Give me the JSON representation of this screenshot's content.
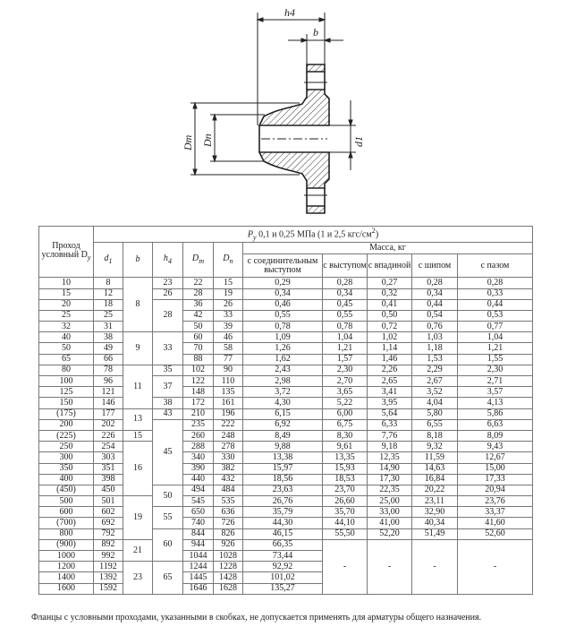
{
  "drawing": {
    "labels": {
      "h4": "h4",
      "b": "b",
      "Dm": "Dm",
      "Dn": "Dn",
      "d1": "d1"
    }
  },
  "table": {
    "header": {
      "dy": "Проход условный D",
      "dy_sub": "y",
      "pressure": "P",
      "pressure_sub": "y",
      "pressure_text": " 0,1 и 0,25 МПа (1 и 2,5 кгс/см",
      "pressure_sup": "2",
      "pressure_end": ")",
      "d1": "d",
      "d1_sub": "1",
      "b": "b",
      "h4": "h",
      "h4_sub": "4",
      "dm": "D",
      "dm_sub": "m",
      "dn": "D",
      "dn_sub": "n",
      "mass": "Масса, кг",
      "mass_cols": [
        "с соединительным выступом",
        "с выступом",
        "с впадиной",
        "с шипом",
        "с пазом"
      ]
    },
    "rows": [
      {
        "dy": "10",
        "d1": "8",
        "b": "8",
        "h4": "23",
        "dm": "22",
        "dn": "15",
        "m": [
          "0,29",
          "0,28",
          "0,27",
          "0,28",
          "0,28"
        ]
      },
      {
        "dy": "15",
        "d1": "12",
        "b": "8",
        "h4": "26",
        "dm": "28",
        "dn": "19",
        "m": [
          "0,34",
          "0,34",
          "0,32",
          "0,34",
          "0,33"
        ]
      },
      {
        "dy": "20",
        "d1": "18",
        "b": "8",
        "h4": "28",
        "dm": "36",
        "dn": "26",
        "m": [
          "0,46",
          "0,45",
          "0,41",
          "0,44",
          "0,44"
        ]
      },
      {
        "dy": "25",
        "d1": "25",
        "b": "8",
        "h4": "28",
        "dm": "42",
        "dn": "33",
        "m": [
          "0,55",
          "0,55",
          "0,50",
          "0,54",
          "0,53"
        ]
      },
      {
        "dy": "32",
        "d1": "31",
        "b": "8",
        "h4": "28",
        "dm": "50",
        "dn": "39",
        "m": [
          "0,78",
          "0,78",
          "0,72",
          "0,76",
          "0,77"
        ]
      },
      {
        "dy": "40",
        "d1": "38",
        "b": "9",
        "h4": "33",
        "dm": "60",
        "dn": "46",
        "m": [
          "1,09",
          "1,04",
          "1,02",
          "1,03",
          "1,04"
        ]
      },
      {
        "dy": "50",
        "d1": "49",
        "b": "9",
        "h4": "33",
        "dm": "70",
        "dn": "58",
        "m": [
          "1,26",
          "1,21",
          "1,14",
          "1,18",
          "1,21"
        ]
      },
      {
        "dy": "65",
        "d1": "66",
        "b": "9",
        "h4": "33",
        "dm": "88",
        "dn": "77",
        "m": [
          "1,62",
          "1,57",
          "1,46",
          "1,53",
          "1,55"
        ]
      },
      {
        "dy": "80",
        "d1": "78",
        "b": "11",
        "h4": "35",
        "dm": "102",
        "dn": "90",
        "m": [
          "2,43",
          "2,30",
          "2,26",
          "2,29",
          "2,30"
        ]
      },
      {
        "dy": "100",
        "d1": "96",
        "b": "11",
        "h4": "37",
        "dm": "122",
        "dn": "110",
        "m": [
          "2,98",
          "2,70",
          "2,65",
          "2,67",
          "2,71"
        ]
      },
      {
        "dy": "125",
        "d1": "121",
        "b": "11",
        "h4": "37",
        "dm": "148",
        "dn": "135",
        "m": [
          "3,72",
          "3,65",
          "3,41",
          "3,52",
          "3,57"
        ]
      },
      {
        "dy": "150",
        "d1": "146",
        "b": "11",
        "h4": "38",
        "dm": "172",
        "dn": "161",
        "m": [
          "4,30",
          "5,22",
          "3,95",
          "4,04",
          "4,13"
        ]
      },
      {
        "dy": "(175)",
        "d1": "177",
        "b": "13",
        "h4": "43",
        "dm": "210",
        "dn": "196",
        "m": [
          "6,15",
          "6,00",
          "5,64",
          "5,80",
          "5,86"
        ]
      },
      {
        "dy": "200",
        "d1": "202",
        "b": "13",
        "h4": "45",
        "dm": "235",
        "dn": "222",
        "m": [
          "6,92",
          "6,75",
          "6,33",
          "6,55",
          "6,63"
        ]
      },
      {
        "dy": "(225)",
        "d1": "226",
        "b": "15",
        "h4": "45",
        "dm": "260",
        "dn": "248",
        "m": [
          "8,49",
          "8,30",
          "7,76",
          "8,18",
          "8,09"
        ]
      },
      {
        "dy": "250",
        "d1": "254",
        "b": "16",
        "h4": "45",
        "dm": "288",
        "dn": "278",
        "m": [
          "9,88",
          "9,61",
          "9,18",
          "9,32",
          "9,43"
        ]
      },
      {
        "dy": "300",
        "d1": "303",
        "b": "16",
        "h4": "45",
        "dm": "340",
        "dn": "330",
        "m": [
          "13,38",
          "13,35",
          "12,35",
          "11,59",
          "12,67"
        ]
      },
      {
        "dy": "350",
        "d1": "351",
        "b": "16",
        "h4": "45",
        "dm": "390",
        "dn": "382",
        "m": [
          "15,97",
          "15,93",
          "14,90",
          "14,63",
          "15,00"
        ]
      },
      {
        "dy": "400",
        "d1": "398",
        "b": "16",
        "h4": "45",
        "dm": "440",
        "dn": "432",
        "m": [
          "18,56",
          "18,53",
          "17,30",
          "16,84",
          "17,33"
        ]
      },
      {
        "dy": "(450)",
        "d1": "450",
        "b": "16",
        "h4": "50",
        "dm": "494",
        "dn": "484",
        "m": [
          "23,63",
          "23,70",
          "22,35",
          "20,22",
          "20,94"
        ]
      },
      {
        "dy": "500",
        "d1": "501",
        "b": "19",
        "h4": "50",
        "dm": "545",
        "dn": "535",
        "m": [
          "26,76",
          "26,60",
          "25,00",
          "23,11",
          "23,76"
        ]
      },
      {
        "dy": "600",
        "d1": "602",
        "b": "19",
        "h4": "55",
        "dm": "650",
        "dn": "636",
        "m": [
          "35,79",
          "35,70",
          "33,00",
          "32,90",
          "33,37"
        ]
      },
      {
        "dy": "(700)",
        "d1": "692",
        "b": "19",
        "h4": "55",
        "dm": "740",
        "dn": "726",
        "m": [
          "44,30",
          "44,10",
          "41,00",
          "40,34",
          "41,60"
        ]
      },
      {
        "dy": "800",
        "d1": "792",
        "b": "19",
        "h4": "60",
        "dm": "844",
        "dn": "826",
        "m": [
          "46,15",
          "55,50",
          "52,20",
          "51,49",
          "52,60"
        ]
      },
      {
        "dy": "(900)",
        "d1": "892",
        "b": "21",
        "h4": "60",
        "dm": "944",
        "dn": "926",
        "m": [
          "66,35",
          "-",
          "-",
          "-",
          "-"
        ]
      },
      {
        "dy": "1000",
        "d1": "992",
        "b": "21",
        "h4": "60",
        "dm": "1044",
        "dn": "1028",
        "m": [
          "73,44",
          "-",
          "-",
          "-",
          "-"
        ]
      },
      {
        "dy": "1200",
        "d1": "1192",
        "b": "23",
        "h4": "65",
        "dm": "1244",
        "dn": "1228",
        "m": [
          "92,92",
          "-",
          "-",
          "-",
          "-"
        ]
      },
      {
        "dy": "1400",
        "d1": "1392",
        "b": "23",
        "h4": "65",
        "dm": "1445",
        "dn": "1428",
        "m": [
          "101,02",
          "-",
          "-",
          "-",
          "-"
        ]
      },
      {
        "dy": "1600",
        "d1": "1592",
        "b": "23",
        "h4": "65",
        "dm": "1646",
        "dn": "1628",
        "m": [
          "135,27",
          "-",
          "-",
          "-",
          "-"
        ]
      }
    ]
  },
  "footnote": "Фланцы с условными проходами, указанными в скобках, не допускается применять для арматуры общего назначения."
}
